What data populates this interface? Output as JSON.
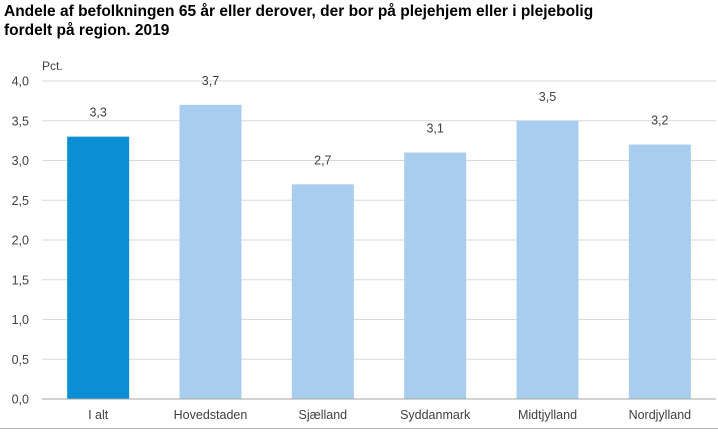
{
  "chart_data": {
    "type": "bar",
    "title_lines": [
      "Andele af befolkningen 65 år eller derover, der bor på plejehjem eller i plejebolig",
      "fordelt på region. 2019"
    ],
    "ylabel": "Pct.",
    "xlabel": "",
    "categories": [
      "I alt",
      "Hovedstaden",
      "Sjælland",
      "Syddanmark",
      "Midtjylland",
      "Nordjylland"
    ],
    "values": [
      3.3,
      3.7,
      2.7,
      3.1,
      3.5,
      3.2
    ],
    "value_labels": [
      "3,3",
      "3,7",
      "2,7",
      "3,1",
      "3,5",
      "3,2"
    ],
    "ylim": [
      0,
      4
    ],
    "yticks": [
      0,
      0.5,
      1,
      1.5,
      2,
      2.5,
      3,
      3.5,
      4
    ],
    "ytick_labels": [
      "0,0",
      "0,5",
      "1,0",
      "1,5",
      "2,0",
      "2,5",
      "3,0",
      "3,5",
      "4,0"
    ],
    "grid": true,
    "legend": "none",
    "colors": {
      "highlight": "#0a8fd4",
      "bar": "#a8cdef",
      "grid": "#d9d9d9",
      "axis": "#a6a6a6",
      "text": "#404040"
    },
    "highlight_index": 0
  }
}
